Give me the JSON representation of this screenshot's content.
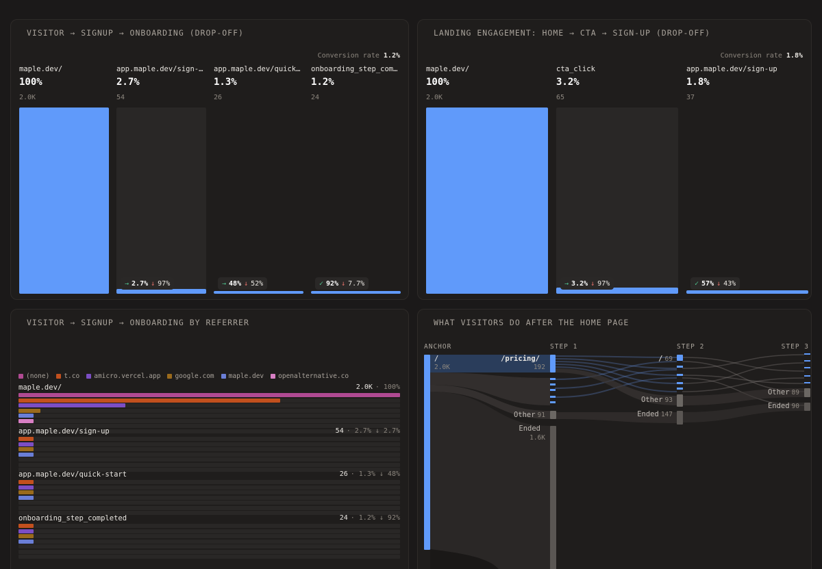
{
  "panels": {
    "p1": {
      "title": "VISITOR → SIGNUP → ONBOARDING (DROP-OFF)",
      "conversion_label": "Conversion rate",
      "conversion_value": "1.2%",
      "steps": [
        {
          "name": "maple.dev/",
          "pct": "100%",
          "count": "2.0K",
          "fill": 1.0
        },
        {
          "name": "app.maple.dev/sign-…",
          "pct": "2.7%",
          "count": "54",
          "fill": 0.027,
          "badge_arrow": "→",
          "badge_through": "2.7%",
          "badge_drop": "97%"
        },
        {
          "name": "app.maple.dev/quick…",
          "pct": "1.3%",
          "count": "26",
          "fill": 0.013,
          "badge_arrow": "→",
          "badge_through": "48%",
          "badge_drop": "52%"
        },
        {
          "name": "onboarding_step_com…",
          "pct": "1.2%",
          "count": "24",
          "fill": 0.012,
          "badge_arrow": "✓",
          "badge_through": "92%",
          "badge_drop": "7.7%"
        }
      ]
    },
    "p2": {
      "title": "LANDING ENGAGEMENT: HOME → CTA → SIGN-UP (DROP-OFF)",
      "conversion_label": "Conversion rate",
      "conversion_value": "1.8%",
      "steps": [
        {
          "name": "maple.dev/",
          "pct": "100%",
          "count": "2.0K",
          "fill": 1.0
        },
        {
          "name": "cta_click",
          "pct": "3.2%",
          "count": "65",
          "fill": 0.032,
          "badge_arrow": "→",
          "badge_through": "3.2%",
          "badge_drop": "97%"
        },
        {
          "name": "app.maple.dev/sign-up",
          "pct": "1.8%",
          "count": "37",
          "fill": 0.018,
          "badge_arrow": "✓",
          "badge_through": "57%",
          "badge_drop": "43%"
        }
      ]
    },
    "p3": {
      "title": "VISITOR → SIGNUP → ONBOARDING BY REFERRER",
      "legend": [
        {
          "name": "(none)",
          "color": "#b04a92"
        },
        {
          "name": "t.co",
          "color": "#c2501e"
        },
        {
          "name": "amicro.vercel.app",
          "color": "#7b4ec4"
        },
        {
          "name": "google.com",
          "color": "#9a6a1c"
        },
        {
          "name": "maple.dev",
          "color": "#6a7ed6"
        },
        {
          "name": "openalternative.co",
          "color": "#d87fc4"
        }
      ],
      "rows": [
        {
          "name": "maple.dev/",
          "count": "2.0K",
          "stat": "· 100%",
          "fills": [
            1.0,
            0.686,
            0.28,
            0.058,
            0.04,
            0.04,
            0,
            0
          ]
        },
        {
          "name": "app.maple.dev/sign-up",
          "count": "54",
          "stat": "· 2.7% ↓ 2.7%",
          "fills": [
            0.04,
            0.04,
            0.04,
            0.04,
            0,
            0,
            0
          ]
        },
        {
          "name": "app.maple.dev/quick-start",
          "count": "26",
          "stat": "· 1.3% ↓ 48%",
          "fills": [
            0.04,
            0.04,
            0.04,
            0.04,
            0,
            0,
            0
          ]
        },
        {
          "name": "onboarding_step_completed",
          "count": "24",
          "stat": "· 1.2% ↓ 92%",
          "fills": [
            0.04,
            0.04,
            0.04,
            0.04,
            0,
            0,
            0
          ]
        }
      ]
    },
    "p4": {
      "title": "WHAT VISITORS DO AFTER THE HOME PAGE",
      "columns": [
        "ANCHOR",
        "STEP 1",
        "STEP 2",
        "STEP 3"
      ],
      "anchor_label": "/",
      "anchor_count": "2.0K",
      "step1_top_label": "/pricing/",
      "step1_top_count": "192",
      "step2_top_label": "/",
      "step2_top_count": "69",
      "step1_other_label": "Other",
      "step1_other_count": "91",
      "step1_ended_label": "Ended",
      "step1_ended_count": "1.6K",
      "step2_other_label": "Other",
      "step2_other_count": "93",
      "step2_ended_label": "Ended",
      "step2_ended_count": "147",
      "step3_other_label": "Other",
      "step3_other_count": "89",
      "step3_ended_label": "Ended",
      "step3_ended_count": "90"
    }
  },
  "colors": {
    "accent": "#609afa",
    "track": "#292726",
    "up": "#4fc08d",
    "down": "#e8736b"
  }
}
